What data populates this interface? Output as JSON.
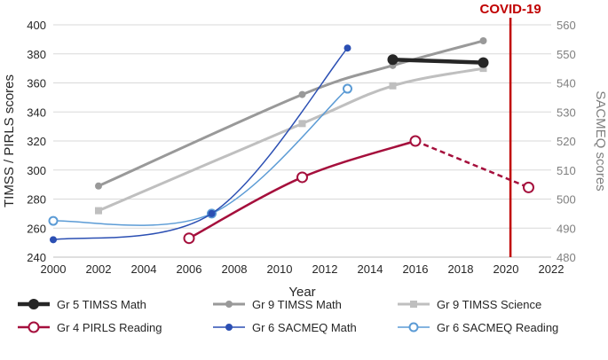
{
  "chart_data": {
    "type": "line",
    "xlabel": "Year",
    "ylabel_left": "TIMSS / PIRLS scores",
    "ylabel_right": "SACMEQ scores",
    "x_range": [
      2000,
      2022
    ],
    "x_ticks": [
      "2000",
      "2002",
      "2004",
      "2006",
      "2008",
      "2010",
      "2012",
      "2014",
      "2016",
      "2018",
      "2020",
      "2022"
    ],
    "y_left_range": [
      240,
      400
    ],
    "y_left_ticks": [
      "240",
      "260",
      "280",
      "300",
      "320",
      "340",
      "360",
      "380",
      "400"
    ],
    "y_right_range": [
      480,
      560
    ],
    "y_right_ticks": [
      "480",
      "490",
      "500",
      "510",
      "520",
      "530",
      "540",
      "550",
      "560"
    ],
    "annotation": {
      "label": "COVID-19",
      "x": 2020.2,
      "color": "#c00000"
    },
    "series": [
      {
        "name": "Gr 5 TIMSS Math",
        "axis": "left",
        "color": "#262626",
        "width": 4.5,
        "marker": "circle-filled",
        "points": [
          {
            "x": 2015,
            "y": 376
          },
          {
            "x": 2019,
            "y": 374
          }
        ]
      },
      {
        "name": "Gr 9 TIMSS Math",
        "axis": "left",
        "color": "#999999",
        "width": 3,
        "marker": "circle-filled",
        "points": [
          {
            "x": 2002,
            "y": 289
          },
          {
            "x": 2011,
            "y": 352
          },
          {
            "x": 2015,
            "y": 372
          },
          {
            "x": 2019,
            "y": 389
          }
        ]
      },
      {
        "name": "Gr 9 TIMSS Science",
        "axis": "left",
        "color": "#bfbfbf",
        "width": 3,
        "marker": "square",
        "points": [
          {
            "x": 2002,
            "y": 272
          },
          {
            "x": 2011,
            "y": 332
          },
          {
            "x": 2015,
            "y": 358
          },
          {
            "x": 2019,
            "y": 370
          }
        ]
      },
      {
        "name": "Gr 4 PIRLS Reading",
        "axis": "left",
        "color": "#a50f3c",
        "width": 2.5,
        "marker": "circle-open",
        "points": [
          {
            "x": 2006,
            "y": 253
          },
          {
            "x": 2011,
            "y": 295
          },
          {
            "x": 2016,
            "y": 320
          }
        ],
        "dashed_extension": {
          "x": 2021,
          "y": 288
        }
      },
      {
        "name": "Gr 6 SACMEQ Math",
        "axis": "right",
        "color": "#2b4fb3",
        "width": 1.5,
        "marker": "circle-filled",
        "points": [
          {
            "x": 2000,
            "y": 486
          },
          {
            "x": 2007,
            "y": 495
          },
          {
            "x": 2013,
            "y": 552
          }
        ]
      },
      {
        "name": "Gr 6 SACMEQ Reading",
        "axis": "right",
        "color": "#5b9bd5",
        "width": 1.5,
        "marker": "circle-open",
        "points": [
          {
            "x": 2000,
            "y": 492.5
          },
          {
            "x": 2007,
            "y": 495
          },
          {
            "x": 2013,
            "y": 538
          }
        ]
      }
    ]
  }
}
